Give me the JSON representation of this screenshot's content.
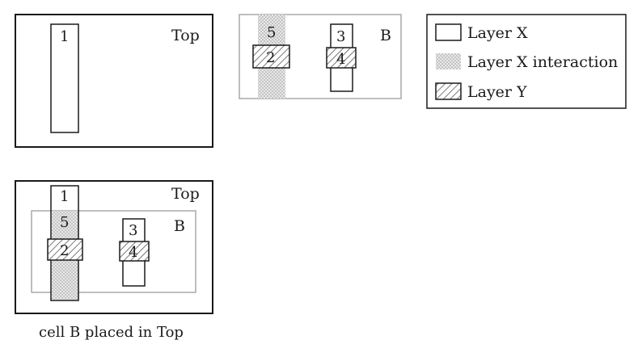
{
  "cells": {
    "top": {
      "label": "Top"
    },
    "b": {
      "label": "B"
    }
  },
  "placed_view": {
    "top_label": "Top",
    "b_label": "B",
    "caption": "cell B placed in Top"
  },
  "shapes": {
    "s1": "1",
    "s2": "2",
    "s3": "3",
    "s4": "4",
    "s5": "5"
  },
  "legend": {
    "items": [
      {
        "label": "Layer X",
        "pattern": "outline"
      },
      {
        "label": "Layer X interaction",
        "pattern": "dotted"
      },
      {
        "label": "Layer Y",
        "pattern": "hatched"
      }
    ]
  },
  "colors": {
    "frame": "#1a1a1a",
    "b_frame": "#a8a8a8",
    "dots": "#9a9a9a",
    "dots_bg": "#e8e8e8",
    "hatch": "#555555"
  }
}
